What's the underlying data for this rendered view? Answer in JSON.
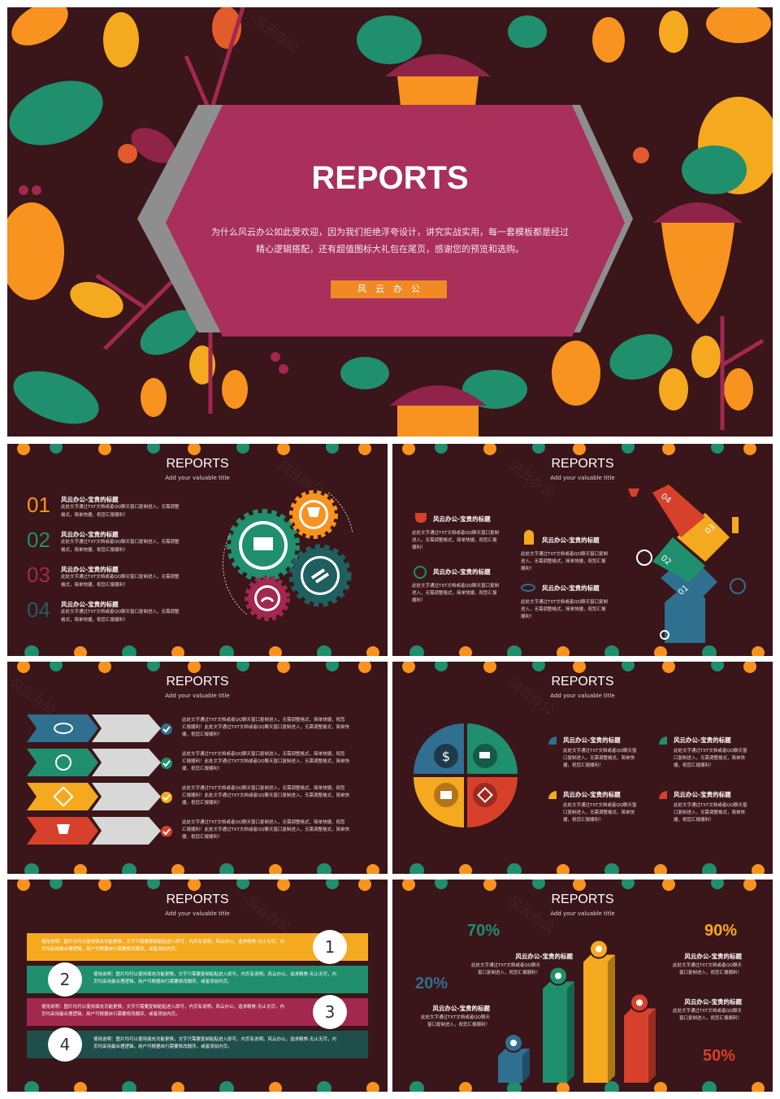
{
  "colors": {
    "bg": "#3a1519",
    "orange": "#f7931e",
    "teal": "#1f8f6e",
    "crimson": "#a2284f",
    "red": "#d7402b",
    "slate": "#2f6f8f",
    "yellow": "#f4a91f"
  },
  "cover": {
    "title": "REPORTS",
    "desc_line1": "为什么风云办公如此受欢迎，因为我们拒绝浮夸设计，讲究实战实用，每一套模板都是经过",
    "desc_line2": "精心逻辑搭配，还有超值图标大礼包在尾页，感谢您的预览和选购。",
    "brand": "风　云　办　公",
    "watermark": "风云办公"
  },
  "common": {
    "title": "REPORTS",
    "subtitle": "Add your valuable title",
    "watermark": "风云办公"
  },
  "slide1": {
    "items": [
      {
        "num": "01",
        "head": "风云办公-宝贵的标题",
        "body1": "此处文字通过TXT文档或者QQ聊天窗口复制进入，无需调整",
        "body2": "格式，简单快捷，祝您汇报顺利！",
        "color": "#f7931e"
      },
      {
        "num": "02",
        "head": "风云办公-宝贵的标题",
        "body1": "此处文字通过TXT文档或者QQ聊天窗口复制进入，无需调整",
        "body2": "格式，简单快捷，祝您汇报顺利！",
        "color": "#1f8f6e"
      },
      {
        "num": "03",
        "head": "风云办公-宝贵的标题",
        "body1": "此处文字通过TXT文档或者QQ聊天窗口复制进入，无需调整",
        "body2": "格式，简单快捷，祝您汇报顺利！",
        "color": "#a2284f"
      },
      {
        "num": "04",
        "head": "风云办公-宝贵的标题",
        "body1": "此处文字通过TXT文档或者QQ聊天窗口复制进入，无需调整",
        "body2": "格式，简单快捷，祝您汇报顺利！",
        "color": "#1f5f5f"
      }
    ]
  },
  "slide2": {
    "items": [
      {
        "head": "风云办公-宝贵的标题",
        "body": "此处文字通过TXT文档或者QQ聊天窗口复制进入，无需调整格式，简单快捷，祝您汇报顺利！",
        "icon": "trophy-icon"
      },
      {
        "head": "风云办公-宝贵的标题",
        "body": "此处文字通过TXT文档或者QQ聊天窗口复制进入，无需调整格式，简单快捷，祝您汇报顺利！",
        "icon": "person-icon"
      },
      {
        "head": "风云办公-宝贵的标题",
        "body": "此处文字通过TXT文档或者QQ聊天窗口复制进入，无需调整格式，简单快捷，祝您汇报顺利！",
        "icon": "clock-icon"
      },
      {
        "head": "风云办公-宝贵的标题",
        "body": "此处文字通过TXT文档或者QQ聊天窗口复制进入，无需调整格式，简单快捷，祝您汇报顺利！",
        "icon": "eye-icon"
      }
    ],
    "steps": [
      "01",
      "02",
      "03",
      "04"
    ]
  },
  "slide3": {
    "rows": [
      {
        "line1": "此处文字通过TXT文档或者QQ聊天窗口复制进入，无需调整格式，简单快捷，祝您",
        "line2": "汇报顺利！此处文字通过TXT文档或者QQ聊天窗口复制进入，无需调整格式，简单快",
        "line3": "捷，祝您汇报顺利！",
        "icon": "eye-icon",
        "color": "#2f6f8f"
      },
      {
        "line1": "此处文字通过TXT文档或者QQ聊天窗口复制进入，无需调整格式，简单快捷，祝您",
        "line2": "汇报顺利！此处文字通过TXT文档或者QQ聊天窗口复制进入，无需调整格式，简单快",
        "line3": "捷，祝您汇报顺利！",
        "icon": "clock-icon",
        "color": "#1f8f6e"
      },
      {
        "line1": "此处文字通过TXT文档或者QQ聊天窗口复制进入，无需调整格式，简单快捷，祝您",
        "line2": "汇报顺利！此处文字通过TXT文档或者QQ聊天窗口复制进入，无需调整格式，简单快",
        "line3": "捷，祝您汇报顺利！",
        "icon": "cube-icon",
        "color": "#f4a91f"
      },
      {
        "line1": "此处文字通过TXT文档或者QQ聊天窗口复制进入，无需调整格式，简单快捷，祝您",
        "line2": "汇报顺利！此处文字通过TXT文档或者QQ聊天窗口复制进入，无需调整格式，简单快",
        "line3": "捷，祝您汇报顺利！",
        "icon": "trophy-icon",
        "color": "#d7402b"
      }
    ]
  },
  "slide4": {
    "items": [
      {
        "head": "风云办公-宝贵的标题",
        "body": "此处文字通过TXT文档或者QQ聊天窗口复制进入，无需调整格式，简单快捷，祝您汇报顺利！",
        "color": "#2f6f8f"
      },
      {
        "head": "风云办公-宝贵的标题",
        "body": "此处文字通过TXT文档或者QQ聊天窗口复制进入，无需调整格式，简单快捷，祝您汇报顺利！",
        "color": "#1f8f6e"
      },
      {
        "head": "风云办公-宝贵的标题",
        "body": "此处文字通过TXT文档或者QQ聊天窗口复制进入，无需调整格式，简单快捷，祝您汇报顺利！",
        "color": "#f4a91f"
      },
      {
        "head": "风云办公-宝贵的标题",
        "body": "此处文字通过TXT文档或者QQ聊天窗口复制进入，无需调整格式，简单快捷，祝您汇报顺利！",
        "color": "#d7402b"
      }
    ],
    "icons": [
      "dollar-icon",
      "cart-icon",
      "bank-icon",
      "cube-icon"
    ]
  },
  "slide5": {
    "rows": [
      {
        "num": "1",
        "line1": "使用说明：图片均可以使用填充功能更换，文字只需要复制粘贴进入即可，内页有说明。风云办公，追求精美-无止无尽，内",
        "line2": "页均采用最合理逻辑，用户可根据自行需要修改顺序，或者添加内页。",
        "color": "#f4a91f"
      },
      {
        "num": "2",
        "line1": "使用说明：图片均可以使用填充功能更换，文字只需要复制粘贴进入即可，内页有说明。风云办公，追求精美-无止无尽，内",
        "line2": "页均采用最合理逻辑，用户可根据自行需要修改顺序，或者添加内页。",
        "color": "#1f8f6e"
      },
      {
        "num": "3",
        "line1": "使用说明：图片均可以使用填充功能更换，文字只需要复制粘贴进入即可，内页有说明。风云办公，追求精美-无止无尽，内",
        "line2": "页均采用最合理逻辑，用户可根据自行需要修改顺序，或者添加内页。",
        "color": "#a2284f"
      },
      {
        "num": "4",
        "line1": "使用说明：图片均可以使用填充功能更换，文字只需要复制粘贴进入即可，内页有说明。风云办公，追求精美-无止无尽，内",
        "line2": "页均采用最合理逻辑，用户可根据自行需要修改顺序，或者添加内页。",
        "color": "#1f4f4a"
      }
    ]
  },
  "slide6": {
    "labels": [
      {
        "pct": "70%",
        "head": "风云办公-宝贵的标题",
        "body": "此处文字通过TXT文档或者QQ聊天窗口复制进入，祝您汇报顺利！",
        "color": "#1f8f6e"
      },
      {
        "pct": "20%",
        "head": "风云办公-宝贵的标题",
        "body": "此处文字通过TXT文档或者QQ聊天窗口复制进入，祝您汇报顺利！",
        "color": "#2f6f8f"
      },
      {
        "pct": "90%",
        "head": "风云办公-宝贵的标题",
        "body": "此处文字通过TXT文档或者QQ聊天窗口复制进入，祝您汇报顺利！",
        "color": "#f4a91f"
      },
      {
        "pct": "50%",
        "head": "风云办公-宝贵的标题",
        "body": "此处文字通过TXT文档或者QQ聊天窗口复制进入，祝您汇报顺利！",
        "color": "#d7402b"
      }
    ],
    "bars": [
      {
        "value": 20,
        "color": "#2f6f8f",
        "icon": "gears-icon"
      },
      {
        "value": 70,
        "color": "#1f8f6e",
        "icon": "network-icon"
      },
      {
        "value": 90,
        "color": "#f4a91f",
        "icon": "cloud-icon"
      },
      {
        "value": 50,
        "color": "#d7402b",
        "icon": "camera-icon"
      }
    ]
  }
}
